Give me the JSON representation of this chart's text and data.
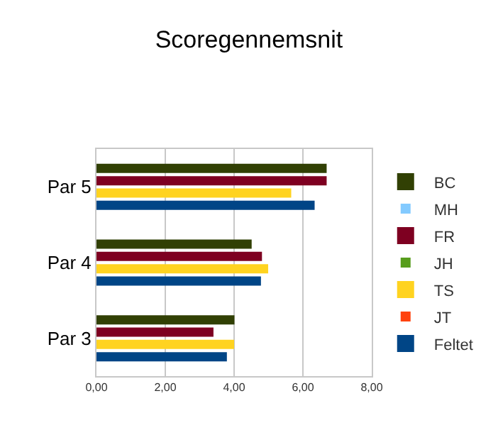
{
  "chart_data": {
    "type": "bar",
    "orientation": "horizontal",
    "title": "Scoregennemsnit",
    "categories": [
      "Par 5",
      "Par 4",
      "Par 3"
    ],
    "series": [
      {
        "name": "BC",
        "color": "#314004",
        "values": [
          6.69,
          4.51,
          4.01
        ]
      },
      {
        "name": "MH",
        "color": "#83caff",
        "values": [
          null,
          null,
          null
        ]
      },
      {
        "name": "FR",
        "color": "#7e0021",
        "values": [
          6.69,
          4.81,
          3.4
        ]
      },
      {
        "name": "JH",
        "color": "#579d1c",
        "values": [
          null,
          null,
          null
        ]
      },
      {
        "name": "TS",
        "color": "#ffd320",
        "values": [
          5.66,
          4.99,
          4.0
        ]
      },
      {
        "name": "JT",
        "color": "#ff420e",
        "values": [
          null,
          null,
          null
        ]
      },
      {
        "name": "Feltet",
        "color": "#004586",
        "values": [
          6.34,
          4.78,
          3.79
        ]
      }
    ],
    "xlim": [
      0,
      8
    ],
    "xticks": [
      {
        "value": 0,
        "label": "0,00"
      },
      {
        "value": 2,
        "label": "2,00"
      },
      {
        "value": 4,
        "label": "4,00"
      },
      {
        "value": 6,
        "label": "6,00"
      },
      {
        "value": 8,
        "label": "8,00"
      }
    ],
    "grid": "x",
    "legend": "right"
  }
}
